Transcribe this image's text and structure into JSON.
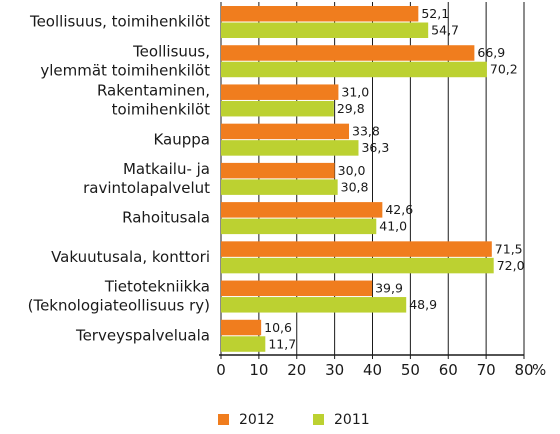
{
  "chart_data": {
    "type": "bar",
    "orientation": "horizontal",
    "categories": [
      [
        "Teollisuus, toimihenkilöt"
      ],
      [
        "Teollisuus,",
        "ylemmät toimihenkilöt"
      ],
      [
        "Rakentaminen,",
        "toimihenkilöt"
      ],
      [
        "Kauppa"
      ],
      [
        "Matkailu- ja",
        "ravintolapalvelut"
      ],
      [
        "Rahoitusala"
      ],
      [
        "Vakuutusala, konttori"
      ],
      [
        "Tietotekniikka",
        "(Teknologiateollisuus ry)"
      ],
      [
        "Terveyspalveluala"
      ]
    ],
    "series": [
      {
        "name": "2012",
        "color": "#f07d1e",
        "values": [
          52.1,
          66.9,
          31.0,
          33.8,
          30.0,
          42.6,
          71.5,
          39.9,
          10.6
        ],
        "labels": [
          "52,1",
          "66,9",
          "31,0",
          "33,8",
          "30,0",
          "42,6",
          "71,5",
          "39,9",
          "10,6"
        ]
      },
      {
        "name": "2011",
        "color": "#bcd131",
        "values": [
          54.7,
          70.2,
          29.8,
          36.3,
          30.8,
          41.0,
          72.0,
          48.9,
          11.7
        ],
        "labels": [
          "54,7",
          "70,2",
          "29,8",
          "36,3",
          "30,8",
          "41,0",
          "72,0",
          "48,9",
          "11,7"
        ]
      }
    ],
    "xlim": [
      0,
      80
    ],
    "xticks": [
      "0",
      "10",
      "20",
      "30",
      "40",
      "50",
      "60",
      "70",
      "80"
    ],
    "xunit": "%",
    "grid": true,
    "legend_position": "bottom"
  }
}
